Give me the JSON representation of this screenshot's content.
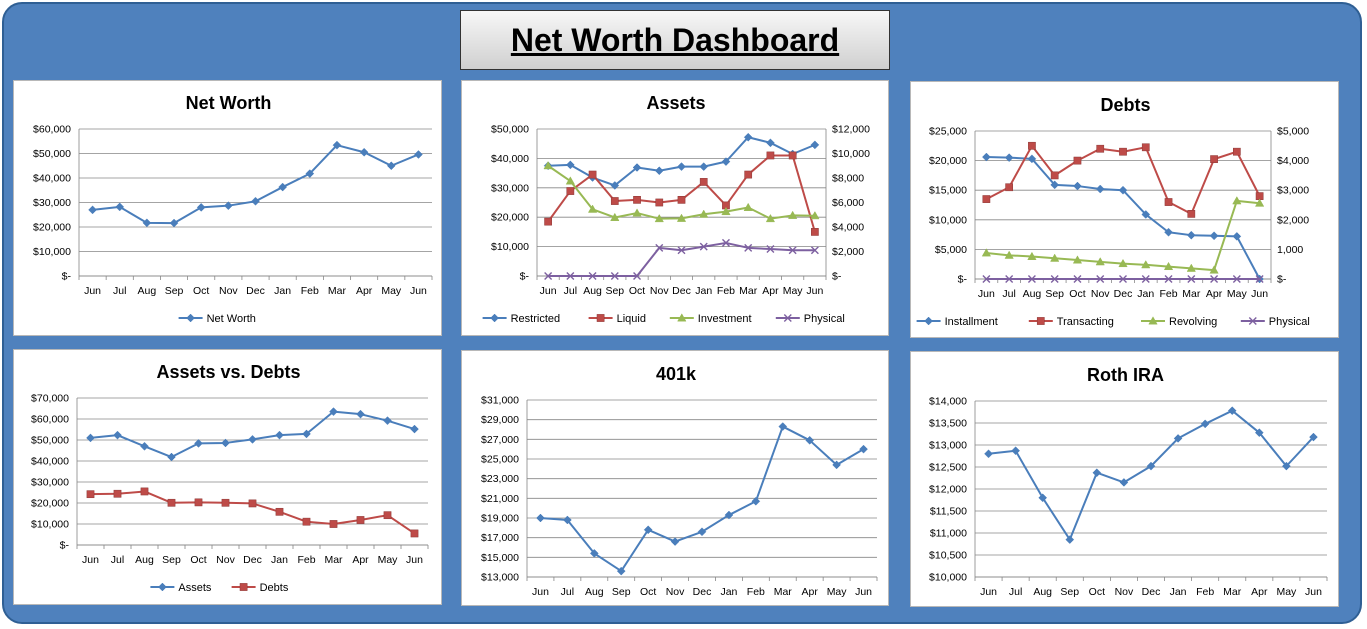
{
  "dashboard": {
    "title": "Net Worth Dashboard"
  },
  "chart_data": [
    {
      "id": "networth",
      "type": "line",
      "title": "Net Worth",
      "categories": [
        "Jun",
        "Jul",
        "Aug",
        "Sep",
        "Oct",
        "Nov",
        "Dec",
        "Jan",
        "Feb",
        "Mar",
        "Apr",
        "May",
        "Jun"
      ],
      "ylim": [
        0,
        60000
      ],
      "yticks": [
        0,
        10000,
        20000,
        30000,
        40000,
        50000,
        60000
      ],
      "ytick_labels": [
        "$-",
        "$10,000",
        "$20,000",
        "$30,000",
        "$40,000",
        "$50,000",
        "$60,000"
      ],
      "grid": true,
      "legend": "bottom",
      "series": [
        {
          "name": "Net Worth",
          "color": "#4a7ebb",
          "marker": "diamond",
          "values": [
            27000,
            28200,
            21700,
            21600,
            28000,
            28700,
            30500,
            36300,
            41800,
            53400,
            50500,
            45000,
            49600
          ]
        }
      ]
    },
    {
      "id": "assets",
      "type": "line",
      "title": "Assets",
      "categories": [
        "Jun",
        "Jul",
        "Aug",
        "Sep",
        "Oct",
        "Nov",
        "Dec",
        "Jan",
        "Feb",
        "Mar",
        "Apr",
        "May",
        "Jun"
      ],
      "ylim": [
        0,
        50000
      ],
      "yticks": [
        0,
        10000,
        20000,
        30000,
        40000,
        50000
      ],
      "ytick_labels": [
        "$-",
        "$10,000",
        "$20,000",
        "$30,000",
        "$40,000",
        "$50,000"
      ],
      "y2lim": [
        0,
        12000
      ],
      "y2ticks": [
        0,
        2000,
        4000,
        6000,
        8000,
        10000,
        12000
      ],
      "y2tick_labels": [
        "$-",
        "$2,000",
        "$4,000",
        "$6,000",
        "$8,000",
        "$10,000",
        "$12,000"
      ],
      "grid": true,
      "legend": "bottom",
      "series": [
        {
          "name": "Restricted",
          "color": "#4a7ebb",
          "marker": "diamond",
          "axis": "left",
          "values": [
            37500,
            37800,
            33500,
            30800,
            36900,
            35800,
            37200,
            37200,
            38900,
            47200,
            45300,
            41500,
            44600
          ]
        },
        {
          "name": "Liquid",
          "color": "#be4b48",
          "marker": "square",
          "axis": "left",
          "values": [
            18500,
            28900,
            34500,
            25500,
            25900,
            25000,
            25900,
            32000,
            24000,
            34500,
            41000,
            41000,
            15000
          ]
        },
        {
          "name": "Investment",
          "color": "#98b954",
          "marker": "triangle",
          "axis": "left",
          "values": [
            37500,
            32300,
            22700,
            19900,
            21400,
            19500,
            19600,
            21000,
            21900,
            23300,
            19500,
            20600,
            20500
          ]
        },
        {
          "name": "Physical",
          "color": "#7d60a0",
          "marker": "x",
          "axis": "right",
          "values": [
            0,
            0,
            0,
            0,
            0,
            2300,
            2100,
            2400,
            2700,
            2300,
            2200,
            2100,
            2100
          ]
        }
      ]
    },
    {
      "id": "debts",
      "type": "line",
      "title": "Debts",
      "categories": [
        "Jun",
        "Jul",
        "Aug",
        "Sep",
        "Oct",
        "Nov",
        "Dec",
        "Jan",
        "Feb",
        "Mar",
        "Apr",
        "May",
        "Jun"
      ],
      "ylim": [
        0,
        25000
      ],
      "yticks": [
        0,
        5000,
        10000,
        15000,
        20000,
        25000
      ],
      "ytick_labels": [
        "$-",
        "$5,000",
        "$10,000",
        "$15,000",
        "$20,000",
        "$25,000"
      ],
      "y2lim": [
        0,
        5000
      ],
      "y2ticks": [
        0,
        1000,
        2000,
        3000,
        4000,
        5000
      ],
      "y2tick_labels": [
        "$-",
        "1,000",
        "$2,000",
        "$3,000",
        "$4,000",
        "$5,000"
      ],
      "grid": true,
      "legend": "bottom",
      "series": [
        {
          "name": "Installment",
          "color": "#4a7ebb",
          "marker": "diamond",
          "axis": "left",
          "values": [
            20600,
            20500,
            20300,
            15900,
            15700,
            15200,
            15000,
            10900,
            7900,
            7400,
            7300,
            7200,
            0
          ]
        },
        {
          "name": "Transacting",
          "color": "#be4b48",
          "marker": "square",
          "axis": "right",
          "values": [
            2700,
            3100,
            4500,
            3500,
            4000,
            4400,
            4300,
            4450,
            2600,
            2200,
            4050,
            4300,
            2800
          ]
        },
        {
          "name": "Revolving",
          "color": "#98b954",
          "marker": "triangle",
          "axis": "left",
          "values": [
            4400,
            4000,
            3800,
            3500,
            3200,
            2900,
            2600,
            2400,
            2100,
            1800,
            1500,
            13200,
            12800
          ]
        },
        {
          "name": "Physical",
          "color": "#7d60a0",
          "marker": "x",
          "axis": "left",
          "values": [
            0,
            0,
            0,
            0,
            0,
            0,
            0,
            0,
            0,
            0,
            0,
            0,
            0
          ]
        }
      ]
    },
    {
      "id": "assetsdebts",
      "type": "line",
      "title": "Assets vs. Debts",
      "categories": [
        "Jun",
        "Jul",
        "Aug",
        "Sep",
        "Oct",
        "Nov",
        "Dec",
        "Jan",
        "Feb",
        "Mar",
        "Apr",
        "May",
        "Jun"
      ],
      "ylim": [
        0,
        70000
      ],
      "yticks": [
        0,
        10000,
        20000,
        30000,
        40000,
        50000,
        60000,
        70000
      ],
      "ytick_labels": [
        "$-",
        "$10,000",
        "$20,000",
        "$30,000",
        "$40,000",
        "$50,000",
        "$60,000",
        "$70,000"
      ],
      "grid": true,
      "legend": "bottom",
      "series": [
        {
          "name": "Assets",
          "color": "#4a7ebb",
          "marker": "diamond",
          "values": [
            51000,
            52300,
            47000,
            41900,
            48400,
            48600,
            50300,
            52300,
            52900,
            63500,
            62300,
            59200,
            55200
          ]
        },
        {
          "name": "Debts",
          "color": "#be4b48",
          "marker": "square",
          "values": [
            24200,
            24400,
            25500,
            20100,
            20300,
            20100,
            19800,
            15800,
            11100,
            10000,
            11900,
            14200,
            5500
          ]
        }
      ]
    },
    {
      "id": "k401",
      "type": "line",
      "title": "401k",
      "categories": [
        "Jun",
        "Jul",
        "Aug",
        "Sep",
        "Oct",
        "Nov",
        "Dec",
        "Jan",
        "Feb",
        "Mar",
        "Apr",
        "May",
        "Jun"
      ],
      "ylim": [
        13000,
        31000
      ],
      "yticks": [
        13000,
        15000,
        17000,
        19000,
        21000,
        23000,
        25000,
        27000,
        29000,
        31000
      ],
      "ytick_labels": [
        "$13,000",
        "$15,000",
        "$17,000",
        "$19,000",
        "$21,000",
        "$23,000",
        "$25,000",
        "$27,000",
        "$29,000",
        "$31,000"
      ],
      "grid": true,
      "legend": "none",
      "series": [
        {
          "name": "",
          "color": "#4a7ebb",
          "marker": "diamond",
          "values": [
            19000,
            18800,
            15400,
            13600,
            17800,
            16600,
            17600,
            19300,
            20700,
            28300,
            26900,
            24400,
            26000
          ]
        }
      ]
    },
    {
      "id": "roth",
      "type": "line",
      "title": "Roth IRA",
      "categories": [
        "Jun",
        "Jul",
        "Aug",
        "Sep",
        "Oct",
        "Nov",
        "Dec",
        "Jan",
        "Feb",
        "Mar",
        "Apr",
        "May",
        "Jun"
      ],
      "ylim": [
        10000,
        14000
      ],
      "yticks": [
        10000,
        10500,
        11000,
        11500,
        12000,
        12500,
        13000,
        13500,
        14000
      ],
      "ytick_labels": [
        "$10,000",
        "$10,500",
        "$11,000",
        "$11,500",
        "$12,000",
        "$12,500",
        "$13,000",
        "$13,500",
        "$14,000"
      ],
      "grid": true,
      "legend": "none",
      "series": [
        {
          "name": "",
          "color": "#4a7ebb",
          "marker": "diamond",
          "values": [
            12800,
            12870,
            11800,
            10850,
            12370,
            12150,
            12520,
            13150,
            13480,
            13780,
            13280,
            12520,
            13180
          ]
        }
      ]
    }
  ]
}
